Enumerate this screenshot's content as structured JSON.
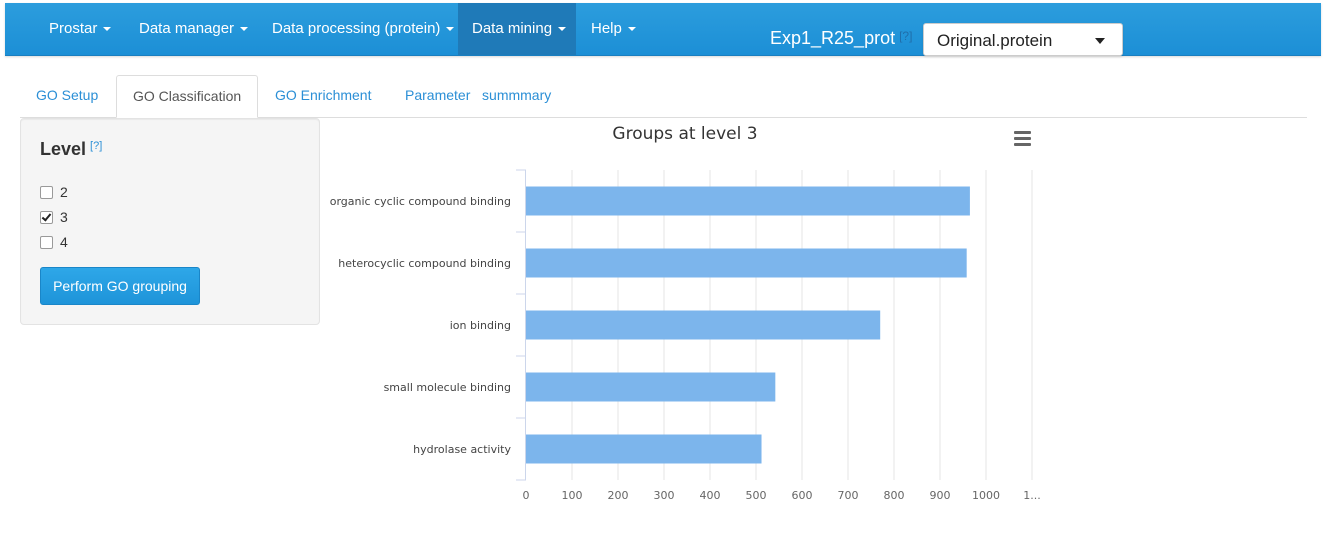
{
  "navbar": {
    "items": [
      {
        "label": "Prostar",
        "dropdown": true
      },
      {
        "label": "Data manager",
        "dropdown": true
      },
      {
        "label": "Data processing (protein)",
        "dropdown": true
      },
      {
        "label": "Data mining",
        "dropdown": true,
        "active": true
      },
      {
        "label": "Help",
        "dropdown": true
      }
    ],
    "dataset_title": "Exp1_R25_prot",
    "help_marker": "[?]",
    "dataset_select_value": "Original.protein"
  },
  "tabs": [
    {
      "label": "GO Setup",
      "active": false
    },
    {
      "label": "GO Classification",
      "active": true
    },
    {
      "label": "GO Enrichment",
      "active": false
    },
    {
      "label": "Parameter   summmary",
      "active": false
    }
  ],
  "sidebar": {
    "level_title": "Level",
    "help_marker": "[?]",
    "levels": [
      {
        "label": "2",
        "checked": false
      },
      {
        "label": "3",
        "checked": true
      },
      {
        "label": "4",
        "checked": false
      }
    ],
    "button_label": "Perform GO grouping"
  },
  "chart_data": {
    "type": "bar",
    "orientation": "horizontal",
    "title": "Groups at level 3",
    "categories": [
      "organic cyclic compound binding",
      "heterocyclic compound binding",
      "ion binding",
      "small molecule binding",
      "hydrolase activity"
    ],
    "values": [
      965,
      958,
      770,
      542,
      512
    ],
    "xlim": [
      0,
      1100
    ],
    "x_ticks": [
      "0",
      "100",
      "200",
      "300",
      "400",
      "500",
      "600",
      "700",
      "800",
      "900",
      "1000",
      "1..."
    ],
    "grid": true,
    "bar_color": "#7cb5ec"
  },
  "colors": {
    "navbar": "#1c8fd6",
    "link": "#2b8fd6",
    "button": "#1e94d9"
  }
}
